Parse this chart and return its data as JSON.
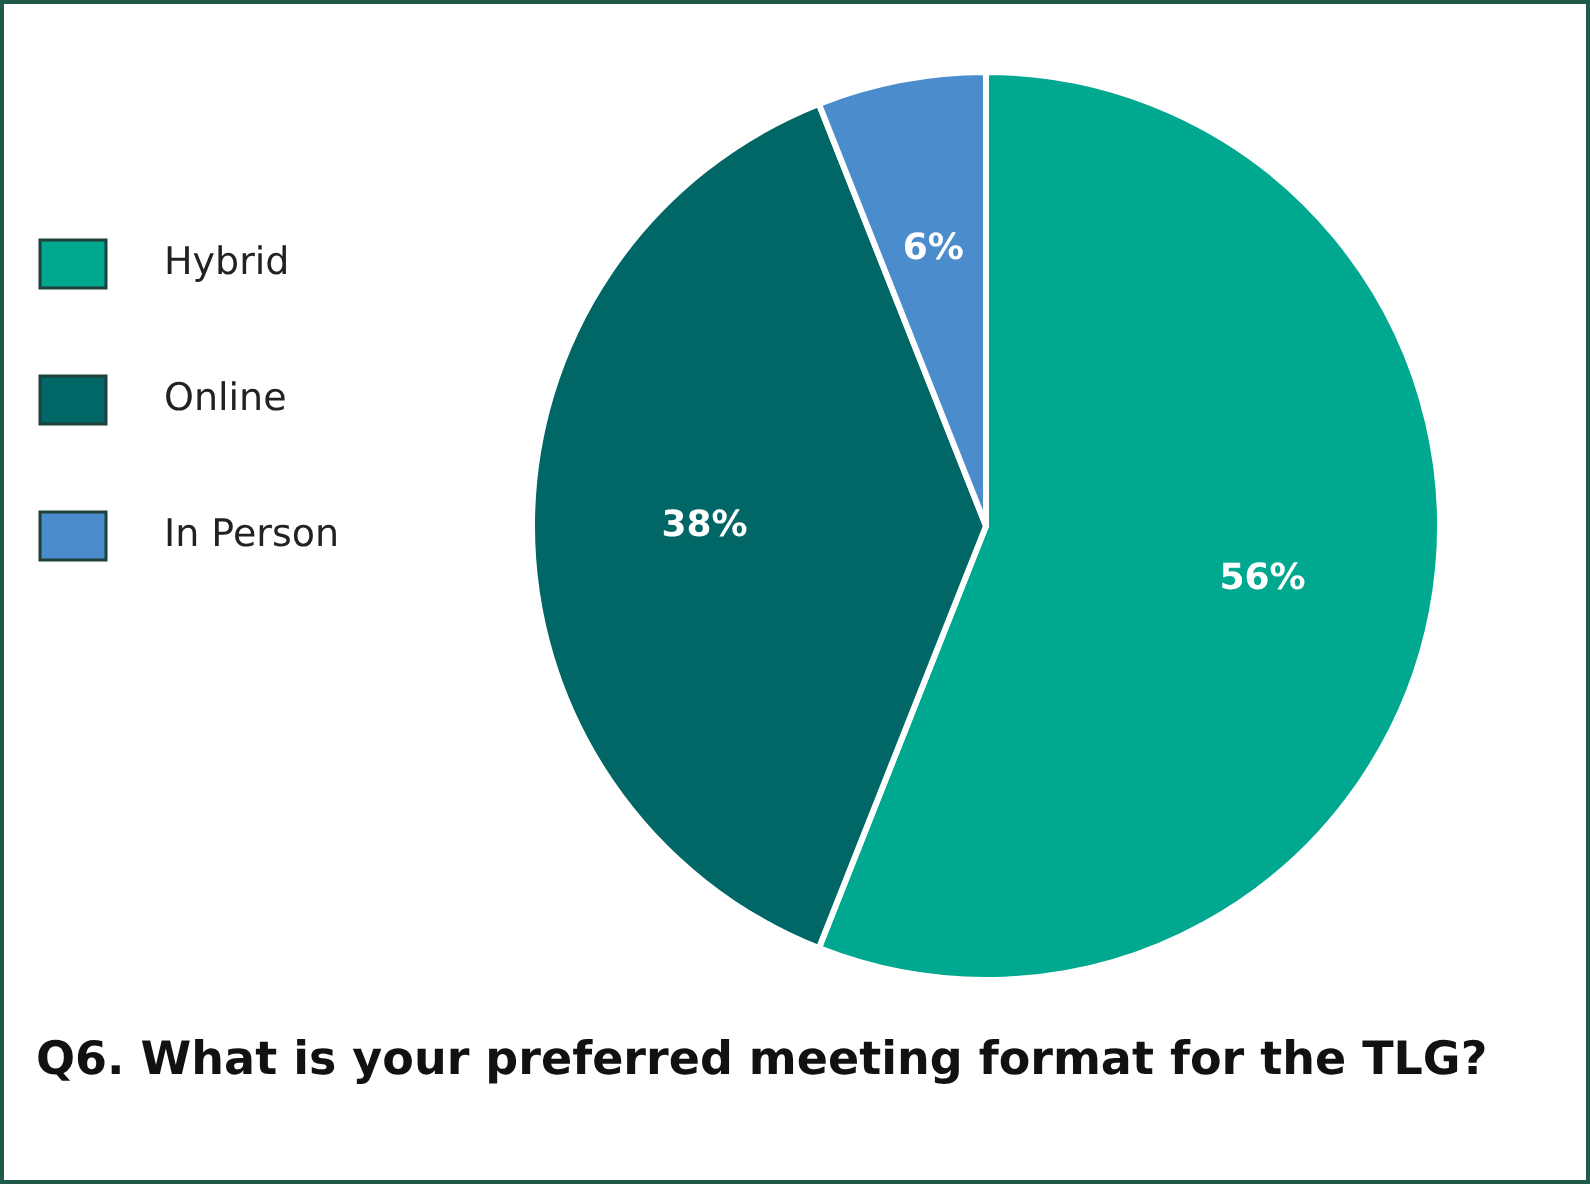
{
  "chart_data": {
    "type": "pie",
    "title": "Q6. What is your preferred meeting format for the TLG?",
    "categories": [
      "Hybrid",
      "Online",
      "In Person"
    ],
    "values": [
      56,
      38,
      6
    ],
    "colors": [
      "#00a88f",
      "#006666",
      "#4a8ccc"
    ],
    "value_labels": [
      "56%",
      "38%",
      "6%"
    ],
    "legend": "left"
  }
}
